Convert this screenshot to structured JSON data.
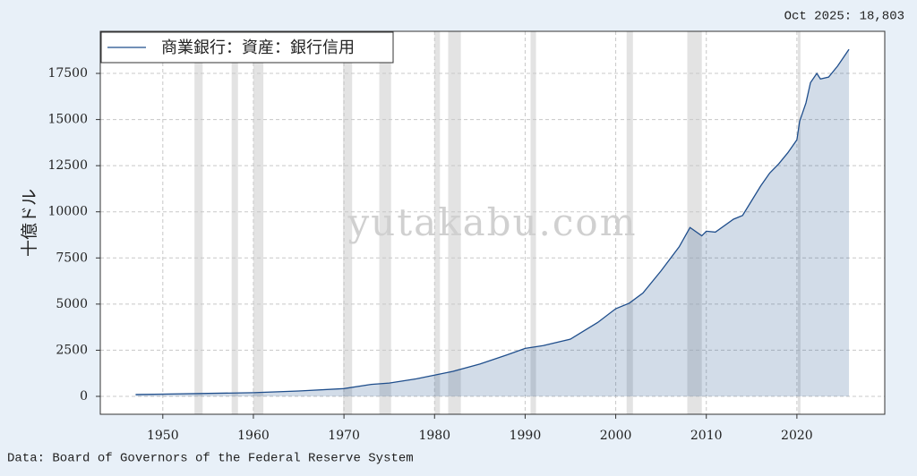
{
  "chart_data": {
    "type": "area",
    "title": "Oct 2025: 18,803",
    "ylabel": "十億ドル",
    "watermark": "yutakabu.com",
    "source": "Data: Board of Governors of the Federal Reserve System",
    "series": [
      {
        "name": "商業銀行：資産：銀行信用",
        "color": "#1f4e8c",
        "x": [
          1947,
          1950,
          1955,
          1960,
          1965,
          1970,
          1973,
          1975,
          1978,
          1980,
          1982,
          1985,
          1988,
          1990,
          1992,
          1995,
          1996,
          1998,
          2000,
          2001.5,
          2003,
          2005,
          2007,
          2008.2,
          2009.5,
          2010,
          2011,
          2013,
          2014,
          2015,
          2016,
          2017,
          2018,
          2019,
          2020,
          2020.3,
          2021,
          2021.5,
          2022.2,
          2022.6,
          2023.5,
          2024.5,
          2025.75
        ],
        "values": [
          100,
          120,
          160,
          200,
          290,
          420,
          650,
          720,
          950,
          1150,
          1350,
          1750,
          2250,
          2600,
          2750,
          3100,
          3400,
          4000,
          4750,
          5050,
          5600,
          6800,
          8100,
          9150,
          8700,
          8950,
          8900,
          9600,
          9800,
          10600,
          11400,
          12100,
          12600,
          13200,
          13900,
          14900,
          15900,
          17000,
          17500,
          17200,
          17300,
          17900,
          18803
        ]
      }
    ],
    "recessions": [
      [
        1953.5,
        1954.4
      ],
      [
        1957.6,
        1958.3
      ],
      [
        1960.0,
        1961.1
      ],
      [
        1969.9,
        1970.9
      ],
      [
        1973.9,
        1975.2
      ],
      [
        1980.0,
        1980.6
      ],
      [
        1981.5,
        1982.9
      ],
      [
        1990.6,
        1991.2
      ],
      [
        2001.2,
        2001.9
      ],
      [
        2007.9,
        2009.5
      ],
      [
        2020.1,
        2020.4
      ]
    ],
    "xlim": [
      1943.1,
      2029.7
    ],
    "ylim": [
      -970,
      19780
    ],
    "xticks": [
      1950,
      1960,
      1970,
      1980,
      1990,
      2000,
      2010,
      2020
    ],
    "yticks": [
      0,
      2500,
      5000,
      7500,
      10000,
      12500,
      15000,
      17500
    ],
    "grid": true,
    "legend": "upper left"
  }
}
